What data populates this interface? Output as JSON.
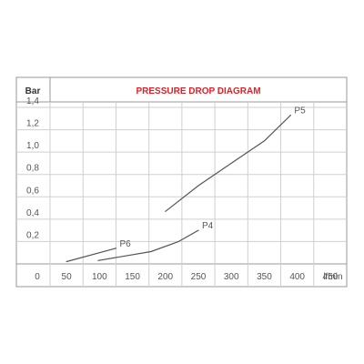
{
  "chart_data": {
    "type": "line",
    "title": "PRESSURE DROP DIAGRAM",
    "ylabel": "Bar",
    "xlabel": "l/min",
    "origin_label": "0",
    "x_ticks": [
      "50",
      "100",
      "150",
      "200",
      "250",
      "300",
      "350",
      "400",
      "450"
    ],
    "y_ticks": [
      "0,2",
      "0,4",
      "0,6",
      "0,8",
      "1,0",
      "1,2",
      "1,4"
    ],
    "xlim": [
      25,
      475
    ],
    "ylim": [
      0,
      1.4
    ],
    "grid": true,
    "series": [
      {
        "name": "P6",
        "x": [
          50,
          125
        ],
        "y": [
          0.02,
          0.14
        ]
      },
      {
        "name": "P4",
        "x": [
          98,
          178,
          220,
          250
        ],
        "y": [
          0.03,
          0.11,
          0.2,
          0.3
        ]
      },
      {
        "name": "P5",
        "x": [
          200,
          250,
          300,
          350,
          390
        ],
        "y": [
          0.47,
          0.7,
          0.9,
          1.1,
          1.33
        ]
      }
    ]
  },
  "colors": {
    "title": "#e31e24",
    "origin": "#e31e24",
    "line": "#555555",
    "grid": "#cfcfcf",
    "frame": "#999999"
  }
}
